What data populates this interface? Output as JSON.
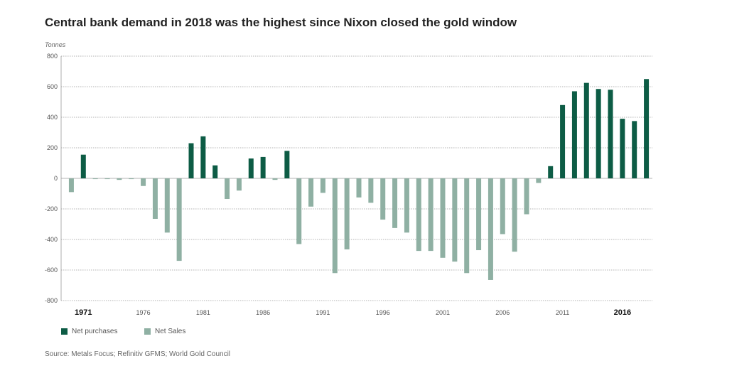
{
  "title": "Central bank demand in 2018 was the highest since Nixon closed the gold window",
  "source": "Source: Metals Focus; Refinitiv GFMS; World Gold Council",
  "colors": {
    "purchases": "#0d5c45",
    "sales": "#8fb0a3"
  },
  "legend": {
    "purchases": "Net purchases",
    "sales": "Net Sales"
  },
  "chart_data": {
    "type": "bar",
    "ylabel": "Tonnes",
    "xlabel": "",
    "ylim": [
      -800,
      800
    ],
    "yticks": [
      800,
      600,
      400,
      200,
      0,
      -200,
      -400,
      -600,
      -800
    ],
    "x_labels": [
      {
        "year": 1971,
        "label": "1971",
        "bold": true
      },
      {
        "year": 1976,
        "label": "1976",
        "bold": false
      },
      {
        "year": 1981,
        "label": "1981",
        "bold": false
      },
      {
        "year": 1986,
        "label": "1986",
        "bold": false
      },
      {
        "year": 1991,
        "label": "1991",
        "bold": false
      },
      {
        "year": 1996,
        "label": "1996",
        "bold": false
      },
      {
        "year": 2001,
        "label": "2001",
        "bold": false
      },
      {
        "year": 2006,
        "label": "2006",
        "bold": false
      },
      {
        "year": 2011,
        "label": "2011",
        "bold": false
      },
      {
        "year": 2016,
        "label": "2016",
        "bold": true
      }
    ],
    "grid": true,
    "legend_position": "bottom-left",
    "categories": [
      1970,
      1971,
      1972,
      1973,
      1974,
      1975,
      1976,
      1977,
      1978,
      1979,
      1980,
      1981,
      1982,
      1983,
      1984,
      1985,
      1986,
      1987,
      1988,
      1989,
      1990,
      1991,
      1992,
      1993,
      1994,
      1995,
      1996,
      1997,
      1998,
      1999,
      2000,
      2001,
      2002,
      2003,
      2004,
      2005,
      2006,
      2007,
      2008,
      2009,
      2010,
      2011,
      2012,
      2013,
      2014,
      2015,
      2016,
      2017,
      2018
    ],
    "values": [
      -90,
      155,
      -5,
      -5,
      -10,
      -5,
      -50,
      -265,
      -355,
      -540,
      230,
      275,
      85,
      -135,
      -80,
      130,
      140,
      -10,
      180,
      -430,
      -185,
      -95,
      -620,
      -465,
      -125,
      -160,
      -270,
      -325,
      -355,
      -475,
      -475,
      -520,
      -545,
      -620,
      -470,
      -665,
      -365,
      -480,
      -235,
      -30,
      80,
      480,
      570,
      625,
      585,
      580,
      390,
      375,
      650
    ]
  }
}
